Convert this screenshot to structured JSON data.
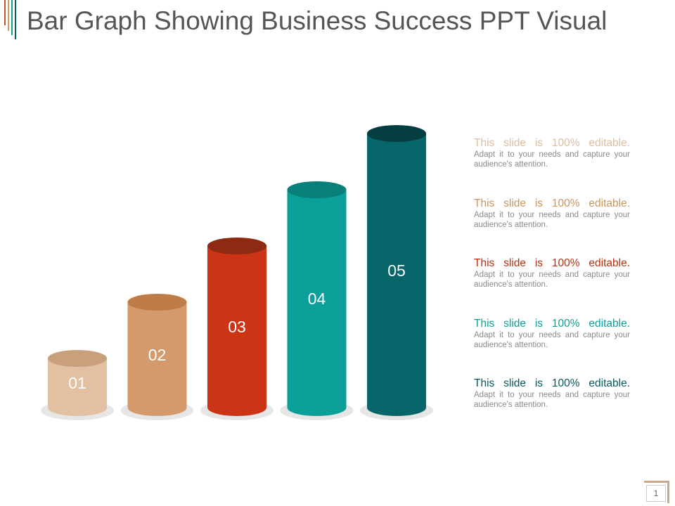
{
  "slide": {
    "title": "Bar Graph Showing Business Success PPT Visual",
    "page_number": "1",
    "accent_bars": [
      "#c0532d",
      "#d19a70",
      "#0a9c96",
      "#075f64"
    ]
  },
  "chart_data": {
    "type": "bar",
    "style": "3d-cylinder",
    "categories": [
      "01",
      "02",
      "03",
      "04",
      "05"
    ],
    "values": [
      1,
      2,
      3,
      4,
      5
    ],
    "ylim": [
      0,
      5
    ],
    "grid": false,
    "colors": [
      {
        "body": "#e2c0a1",
        "top": "#c9a07c"
      },
      {
        "body": "#d59a6c",
        "top": "#c07c46"
      },
      {
        "body": "#cb3516",
        "top": "#8e2a12"
      },
      {
        "body": "#0b9f99",
        "top": "#087f79"
      },
      {
        "body": "#06666a",
        "top": "#043e40"
      }
    ]
  },
  "legend": [
    {
      "heading": "This slide is 100% editable.",
      "body": "Adapt it to your needs and capture your audience's attention.",
      "color": "#dbbfa2"
    },
    {
      "heading": "This slide is 100% editable.",
      "body": "Adapt it to your needs and capture your audience's attention.",
      "color": "#c9955e"
    },
    {
      "heading": "This slide is 100% editable.",
      "body": "Adapt it to your needs and capture your audience's attention.",
      "color": "#b6300f"
    },
    {
      "heading": "This slide is 100% editable.",
      "body": "Adapt it to your needs and capture your audience's attention.",
      "color": "#0b9f99"
    },
    {
      "heading": "This slide is 100% editable.",
      "body": "Adapt it to your needs and capture your audience's attention.",
      "color": "#06585c"
    }
  ]
}
